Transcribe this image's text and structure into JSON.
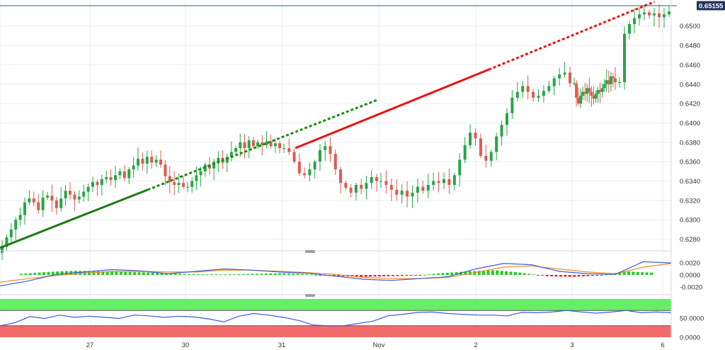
{
  "chart_data": [
    {
      "type": "candlestick",
      "title": "",
      "price_axis": {
        "ticks": [
          "0.6500",
          "0.6480",
          "0.6460",
          "0.6440",
          "0.6420",
          "0.6400",
          "0.6380",
          "0.6360",
          "0.6340",
          "0.6320",
          "0.6300",
          "0.6280"
        ],
        "ylim": [
          0.6268,
          0.6521
        ]
      },
      "last_price": "0.65155",
      "x_ticks": [
        "27",
        "30",
        "31",
        "Nov",
        "2",
        "3",
        "6"
      ],
      "close_path": [
        [
          0.6272,
          0.6282,
          0.629,
          0.63,
          0.6305,
          0.6318,
          0.6322,
          0.6318,
          0.631,
          0.6323,
          0.6325,
          0.632,
          0.6312,
          0.6322,
          0.633,
          0.6326,
          0.6321,
          0.6324,
          0.6329,
          0.6334,
          0.6339,
          0.6336,
          0.6342,
          0.6344,
          0.6341,
          0.6346,
          0.635,
          0.6343,
          0.6352,
          0.6356,
          0.6363,
          0.6358,
          0.6365,
          0.6359,
          0.6362,
          0.6357,
          0.6345,
          0.6339,
          0.6336,
          0.6338,
          0.6334
        ],
        [
          0.6334,
          0.634,
          0.6346,
          0.635,
          0.6357,
          0.6353,
          0.636,
          0.6364,
          0.6359,
          0.6365,
          0.637,
          0.6374,
          0.638,
          0.6374,
          0.6382,
          0.6376,
          0.638,
          0.6377,
          0.6381,
          0.6376,
          0.6379,
          0.6374
        ],
        [
          0.6374,
          0.637,
          0.636,
          0.6348,
          0.6346,
          0.6352,
          0.636,
          0.6372,
          0.6376,
          0.6368,
          0.6352,
          0.6338,
          0.6333,
          0.6328,
          0.6336,
          0.6332,
          0.6338,
          0.6344,
          0.634
        ],
        [
          0.634,
          0.6336,
          0.6331,
          0.6326,
          0.633,
          0.6324,
          0.6328,
          0.6334,
          0.633,
          0.6336,
          0.634,
          0.6338,
          0.6342,
          0.6336,
          0.6346,
          0.6362,
          0.6377,
          0.639,
          0.6384,
          0.6366,
          0.6361,
          0.637,
          0.6386,
          0.6398,
          0.641,
          0.6426,
          0.6432,
          0.6438,
          0.6432,
          0.6426,
          0.6428,
          0.6433,
          0.6438,
          0.6446,
          0.645,
          0.6452,
          0.6441
        ],
        [
          0.6441,
          0.6426,
          0.642,
          0.6428,
          0.6432,
          0.643,
          0.6436,
          0.6432,
          0.6428,
          0.6425,
          0.643,
          0.6434,
          0.6432,
          0.6436,
          0.644,
          0.6444,
          0.644,
          0.6448,
          0.6446,
          0.6442
        ],
        [
          0.6442,
          0.6492,
          0.6502,
          0.6508,
          0.6512,
          0.6514,
          0.6511,
          0.6513,
          0.6509,
          0.6512,
          0.6515
        ]
      ],
      "trendlines": [
        {
          "style": "solid",
          "color": "#1a7a12",
          "from": [
            0,
            0.6271
          ],
          "to": [
            0.22,
            0.6331
          ]
        },
        {
          "style": "dotted",
          "color": "#1a8c10",
          "from": [
            0.22,
            0.6331
          ],
          "to": [
            0.563,
            0.6424
          ]
        },
        {
          "style": "solid",
          "color": "#ee1111",
          "from": [
            0.44,
            0.6374
          ],
          "to": [
            0.728,
            0.6455
          ]
        },
        {
          "style": "dotted",
          "color": "#ee1111",
          "from": [
            0.728,
            0.6455
          ],
          "to": [
            0.975,
            0.6525
          ]
        }
      ],
      "last_price_line_color": "#3b5596"
    },
    {
      "type": "macd",
      "axis_ticks": [
        "0.0020",
        "0.0000",
        "-0.0020"
      ],
      "ylim": [
        -0.0028,
        0.0033
      ],
      "macd_line": [
        -0.0018,
        -0.001,
        0.0001,
        0.0005,
        0.0009,
        0.0007,
        0.0002,
        0.0006,
        0.001,
        0.0008,
        0.0005,
        0.0003,
        -0.0002,
        -0.0007,
        -0.0009,
        -0.0006,
        -0.0003,
        0.001,
        0.0019,
        0.0017,
        0.0006,
        0.0002,
        0.0001,
        0.0022,
        0.002
      ],
      "signal_line": [
        -0.0012,
        -0.0006,
        -0.0001,
        0.0003,
        0.0006,
        0.0006,
        0.0005,
        0.0005,
        0.0008,
        0.0008,
        0.0006,
        0.0004,
        0.0001,
        -0.0004,
        -0.0006,
        -0.0006,
        -0.0004,
        0.0004,
        0.0013,
        0.0015,
        0.001,
        0.0005,
        0.0002,
        0.0013,
        0.0019
      ],
      "histogram": [
        0.0002,
        0.0005,
        0.0007,
        0.0006,
        0.0005,
        0.0004,
        0.0002,
        0.0001,
        0.0001,
        0.0002,
        0.0003,
        0.0001,
        -0.0002,
        -0.0003,
        -0.0002,
        -0.0001,
        0.0003,
        0.0006,
        0.0008,
        0.0004,
        -0.0002,
        -0.0003,
        -0.0001,
        0.0006,
        0.0004
      ],
      "colors": {
        "macd": "#3d5bd9",
        "signal": "#f08a24",
        "positive": "#22cc22",
        "negative": "#ee1111"
      }
    },
    {
      "type": "rsi",
      "axis_ticks": [
        "50.0000",
        "0.0000"
      ],
      "ylim": [
        0,
        100
      ],
      "bands": [
        {
          "color": "#66ee66",
          "from": 70,
          "to": 100
        },
        {
          "color": "#f46b6b",
          "from": 0,
          "to": 30
        }
      ],
      "rsi_line": [
        30,
        38,
        54,
        49,
        58,
        52,
        55,
        52,
        49,
        58,
        56,
        52,
        55,
        53,
        48,
        40,
        55,
        62,
        58,
        52,
        44,
        32,
        30,
        30,
        36,
        42,
        56,
        60,
        65,
        66,
        62,
        60,
        58,
        58,
        56,
        65,
        64,
        66,
        70,
        66,
        63,
        66,
        70,
        64,
        66,
        64
      ],
      "line_color": "#3d5bd9"
    }
  ]
}
